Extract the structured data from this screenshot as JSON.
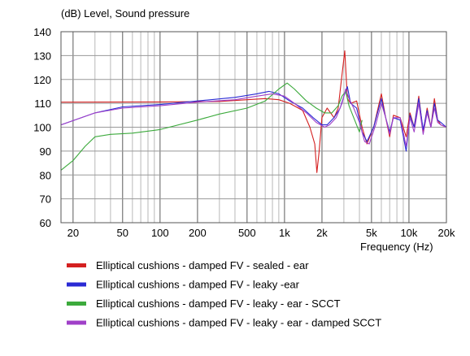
{
  "chart_data": {
    "type": "line",
    "title": "(dB)  Level, Sound pressure",
    "xlabel": "Frequency  (Hz)",
    "x_scale": "log",
    "xlim": [
      16,
      20000
    ],
    "ylim": [
      60,
      140
    ],
    "x_ticks": [
      {
        "v": 20,
        "label": "20"
      },
      {
        "v": 50,
        "label": "50"
      },
      {
        "v": 100,
        "label": "100"
      },
      {
        "v": 200,
        "label": "200"
      },
      {
        "v": 500,
        "label": "500"
      },
      {
        "v": 1000,
        "label": "1k"
      },
      {
        "v": 2000,
        "label": "2k"
      },
      {
        "v": 5000,
        "label": "5k"
      },
      {
        "v": 10000,
        "label": "10k"
      },
      {
        "v": 20000,
        "label": "20k"
      }
    ],
    "y_ticks": [
      60,
      70,
      80,
      90,
      100,
      110,
      120,
      130,
      140
    ],
    "grid": true,
    "legend_position": "bottom",
    "series": [
      {
        "name": "Elliptical cushions - damped FV - sealed - ear",
        "color": "#d42020",
        "points": [
          [
            16,
            110.5
          ],
          [
            100,
            110.6
          ],
          [
            300,
            110.8
          ],
          [
            500,
            111.5
          ],
          [
            700,
            112
          ],
          [
            900,
            111.5
          ],
          [
            1100,
            110
          ],
          [
            1400,
            107
          ],
          [
            1600,
            100
          ],
          [
            1750,
            93
          ],
          [
            1820,
            81
          ],
          [
            1900,
            90
          ],
          [
            2000,
            104
          ],
          [
            2200,
            108
          ],
          [
            2500,
            104
          ],
          [
            2700,
            108
          ],
          [
            2900,
            122
          ],
          [
            3050,
            132
          ],
          [
            3200,
            112
          ],
          [
            3400,
            110
          ],
          [
            3800,
            111
          ],
          [
            4200,
            100
          ],
          [
            4600,
            93
          ],
          [
            5200,
            100
          ],
          [
            6000,
            114
          ],
          [
            6500,
            104
          ],
          [
            7000,
            96
          ],
          [
            7500,
            105
          ],
          [
            8500,
            104
          ],
          [
            9500,
            96
          ],
          [
            10200,
            106
          ],
          [
            11000,
            100
          ],
          [
            12000,
            113
          ],
          [
            13000,
            98
          ],
          [
            14000,
            108
          ],
          [
            15000,
            100
          ],
          [
            16000,
            112
          ],
          [
            17000,
            103
          ],
          [
            18000,
            101
          ],
          [
            20000,
            100
          ]
        ]
      },
      {
        "name": "Elliptical cushions - damped FV - leaky -ear",
        "color": "#2a2ad4",
        "points": [
          [
            16,
            101
          ],
          [
            30,
            106
          ],
          [
            50,
            108.5
          ],
          [
            100,
            109.5
          ],
          [
            200,
            111
          ],
          [
            400,
            112.5
          ],
          [
            600,
            114
          ],
          [
            750,
            115
          ],
          [
            900,
            114
          ],
          [
            1100,
            111
          ],
          [
            1400,
            108
          ],
          [
            1700,
            104
          ],
          [
            2000,
            101
          ],
          [
            2200,
            101
          ],
          [
            2500,
            104
          ],
          [
            2800,
            108
          ],
          [
            3000,
            113
          ],
          [
            3200,
            117
          ],
          [
            3400,
            110
          ],
          [
            3800,
            108
          ],
          [
            4200,
            98
          ],
          [
            4600,
            94
          ],
          [
            5200,
            100
          ],
          [
            6000,
            112
          ],
          [
            6500,
            104
          ],
          [
            7000,
            98
          ],
          [
            7500,
            104
          ],
          [
            8500,
            103
          ],
          [
            9500,
            90
          ],
          [
            10200,
            105
          ],
          [
            11000,
            100
          ],
          [
            12000,
            112
          ],
          [
            13000,
            99
          ],
          [
            14000,
            107
          ],
          [
            15000,
            100
          ],
          [
            16000,
            110
          ],
          [
            17000,
            103
          ],
          [
            18000,
            102
          ],
          [
            20000,
            100
          ]
        ]
      },
      {
        "name": "Elliptical cushions - damped FV - leaky - ear - SCCT",
        "color": "#3caa3c",
        "points": [
          [
            16,
            82
          ],
          [
            20,
            86
          ],
          [
            25,
            92
          ],
          [
            30,
            96
          ],
          [
            40,
            97
          ],
          [
            60,
            97.5
          ],
          [
            100,
            99
          ],
          [
            200,
            103
          ],
          [
            300,
            105.5
          ],
          [
            500,
            108
          ],
          [
            700,
            111
          ],
          [
            900,
            116
          ],
          [
            1050,
            118.5
          ],
          [
            1200,
            116
          ],
          [
            1500,
            111
          ],
          [
            1800,
            108
          ],
          [
            2100,
            106
          ],
          [
            2400,
            106
          ],
          [
            2700,
            109
          ],
          [
            2900,
            113
          ],
          [
            3100,
            115
          ],
          [
            3300,
            109
          ],
          [
            3600,
            104
          ],
          [
            4000,
            98
          ],
          [
            4200,
            103
          ]
        ]
      },
      {
        "name": "Elliptical cushions - damped FV - leaky - ear - damped SCCT",
        "color": "#a040c8",
        "points": [
          [
            16,
            101
          ],
          [
            30,
            106
          ],
          [
            50,
            108
          ],
          [
            100,
            109
          ],
          [
            200,
            110.5
          ],
          [
            400,
            111.5
          ],
          [
            600,
            113
          ],
          [
            800,
            114
          ],
          [
            1000,
            113
          ],
          [
            1200,
            110
          ],
          [
            1500,
            106
          ],
          [
            1800,
            102
          ],
          [
            2100,
            100
          ],
          [
            2300,
            101
          ],
          [
            2600,
            104
          ],
          [
            2900,
            110
          ],
          [
            3100,
            116
          ],
          [
            3300,
            112
          ],
          [
            3600,
            108
          ],
          [
            4000,
            102
          ],
          [
            4400,
            94
          ],
          [
            4800,
            93
          ],
          [
            5400,
            101
          ],
          [
            6000,
            110
          ],
          [
            6500,
            104
          ],
          [
            7000,
            97
          ],
          [
            7500,
            104
          ],
          [
            8500,
            104
          ],
          [
            9500,
            92
          ],
          [
            10200,
            104
          ],
          [
            11000,
            98
          ],
          [
            12000,
            110
          ],
          [
            13000,
            97
          ],
          [
            14000,
            106
          ],
          [
            15000,
            100
          ],
          [
            16000,
            108
          ],
          [
            17000,
            102
          ],
          [
            18000,
            101
          ],
          [
            20000,
            100
          ]
        ]
      }
    ]
  }
}
